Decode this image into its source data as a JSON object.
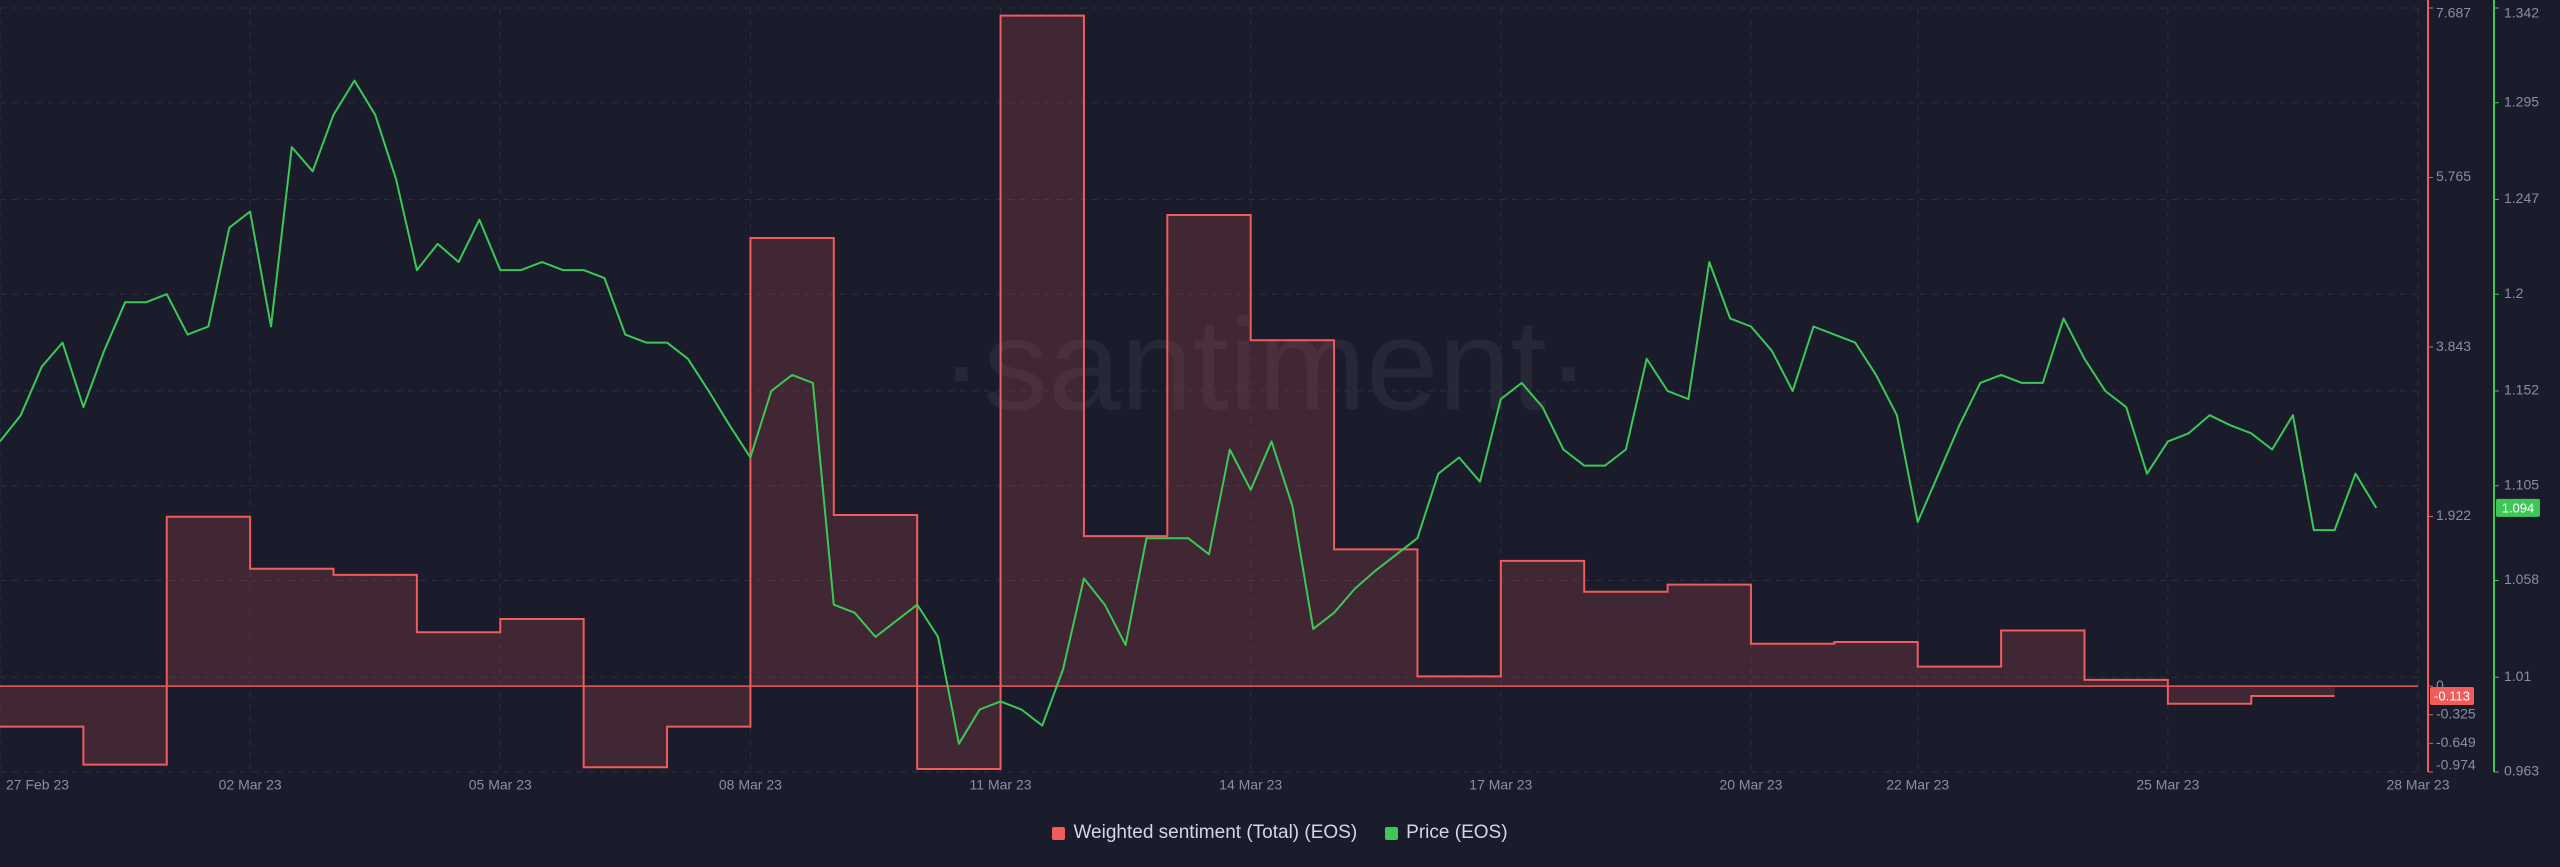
{
  "chart_data": {
    "type": "line",
    "watermark": "·santiment·",
    "xlim": [
      "2023-02-27",
      "2023-03-28"
    ],
    "xticks": [
      {
        "value": "2023-02-27",
        "label": "27 Feb 23"
      },
      {
        "value": "2023-03-02",
        "label": "02 Mar 23"
      },
      {
        "value": "2023-03-05",
        "label": "05 Mar 23"
      },
      {
        "value": "2023-03-08",
        "label": "08 Mar 23"
      },
      {
        "value": "2023-03-11",
        "label": "11 Mar 23"
      },
      {
        "value": "2023-03-14",
        "label": "14 Mar 23"
      },
      {
        "value": "2023-03-17",
        "label": "17 Mar 23"
      },
      {
        "value": "2023-03-20",
        "label": "20 Mar 23"
      },
      {
        "value": "2023-03-22",
        "label": "22 Mar 23"
      },
      {
        "value": "2023-03-25",
        "label": "25 Mar 23"
      },
      {
        "value": "2023-03-28",
        "label": "28 Mar 23"
      }
    ],
    "ylim": [
      -0.974,
      7.687
    ],
    "yticks": [
      7.687,
      5.765,
      3.843,
      1.922,
      0,
      -0.325,
      -0.649,
      -0.974
    ],
    "y2lim": [
      0.963,
      1.342
    ],
    "y2ticks": [
      1.342,
      1.295,
      1.247,
      1.2,
      1.152,
      1.105,
      1.058,
      1.01,
      0.963
    ],
    "grid": true,
    "series": [
      {
        "name": "Weighted sentiment (Total) (EOS)",
        "color": "#f05b5b",
        "axis": "y",
        "x": [
          "2023-02-27",
          "2023-02-28",
          "2023-03-01",
          "2023-03-02",
          "2023-03-03",
          "2023-03-04",
          "2023-03-05",
          "2023-03-06",
          "2023-03-07",
          "2023-03-08",
          "2023-03-09",
          "2023-03-10",
          "2023-03-11",
          "2023-03-12",
          "2023-03-13",
          "2023-03-14",
          "2023-03-15",
          "2023-03-16",
          "2023-03-17",
          "2023-03-18",
          "2023-03-19",
          "2023-03-20",
          "2023-03-21",
          "2023-03-22",
          "2023-03-23",
          "2023-03-24",
          "2023-03-25",
          "2023-03-26"
        ],
        "values": [
          -0.46,
          -0.89,
          1.92,
          1.33,
          1.26,
          0.61,
          0.76,
          -0.92,
          -0.46,
          5.08,
          1.94,
          -0.94,
          7.6,
          1.7,
          5.34,
          3.92,
          1.55,
          0.11,
          1.42,
          1.07,
          1.15,
          0.48,
          0.5,
          0.22,
          0.63,
          0.07,
          -0.2,
          -0.113
        ]
      },
      {
        "name": "Price (EOS)",
        "color": "#3cc857",
        "axis": "y2",
        "x": [
          "2023-02-27T00:00",
          "2023-02-27T06:00",
          "2023-02-27T12:00",
          "2023-02-27T18:00",
          "2023-02-28T00:00",
          "2023-02-28T06:00",
          "2023-02-28T12:00",
          "2023-02-28T18:00",
          "2023-03-01T00:00",
          "2023-03-01T06:00",
          "2023-03-01T12:00",
          "2023-03-01T18:00",
          "2023-03-02T00:00",
          "2023-03-02T06:00",
          "2023-03-02T12:00",
          "2023-03-02T18:00",
          "2023-03-03T00:00",
          "2023-03-03T06:00",
          "2023-03-03T12:00",
          "2023-03-03T18:00",
          "2023-03-04T00:00",
          "2023-03-04T06:00",
          "2023-03-04T12:00",
          "2023-03-04T18:00",
          "2023-03-05T00:00",
          "2023-03-05T06:00",
          "2023-03-05T12:00",
          "2023-03-05T18:00",
          "2023-03-06T00:00",
          "2023-03-06T06:00",
          "2023-03-06T12:00",
          "2023-03-06T18:00",
          "2023-03-07T00:00",
          "2023-03-07T06:00",
          "2023-03-07T12:00",
          "2023-03-07T18:00",
          "2023-03-08T00:00",
          "2023-03-08T06:00",
          "2023-03-08T12:00",
          "2023-03-08T18:00",
          "2023-03-09T00:00",
          "2023-03-09T06:00",
          "2023-03-09T12:00",
          "2023-03-09T18:00",
          "2023-03-10T00:00",
          "2023-03-10T06:00",
          "2023-03-10T12:00",
          "2023-03-10T18:00",
          "2023-03-11T00:00",
          "2023-03-11T06:00",
          "2023-03-11T12:00",
          "2023-03-11T18:00",
          "2023-03-12T00:00",
          "2023-03-12T06:00",
          "2023-03-12T12:00",
          "2023-03-12T18:00",
          "2023-03-13T00:00",
          "2023-03-13T06:00",
          "2023-03-13T12:00",
          "2023-03-13T18:00",
          "2023-03-14T00:00",
          "2023-03-14T06:00",
          "2023-03-14T12:00",
          "2023-03-14T18:00",
          "2023-03-15T00:00",
          "2023-03-15T06:00",
          "2023-03-15T12:00",
          "2023-03-15T18:00",
          "2023-03-16T00:00",
          "2023-03-16T06:00",
          "2023-03-16T12:00",
          "2023-03-16T18:00",
          "2023-03-17T00:00",
          "2023-03-17T06:00",
          "2023-03-17T12:00",
          "2023-03-17T18:00",
          "2023-03-18T00:00",
          "2023-03-18T06:00",
          "2023-03-18T12:00",
          "2023-03-18T18:00",
          "2023-03-19T00:00",
          "2023-03-19T06:00",
          "2023-03-19T12:00",
          "2023-03-19T18:00",
          "2023-03-20T00:00",
          "2023-03-20T06:00",
          "2023-03-20T12:00",
          "2023-03-20T18:00",
          "2023-03-21T00:00",
          "2023-03-21T06:00",
          "2023-03-21T12:00",
          "2023-03-21T18:00",
          "2023-03-22T00:00",
          "2023-03-22T06:00",
          "2023-03-22T12:00",
          "2023-03-22T18:00",
          "2023-03-23T00:00",
          "2023-03-23T06:00",
          "2023-03-23T12:00",
          "2023-03-23T18:00",
          "2023-03-24T00:00",
          "2023-03-24T06:00",
          "2023-03-24T12:00",
          "2023-03-24T18:00",
          "2023-03-25T00:00",
          "2023-03-25T06:00",
          "2023-03-25T12:00",
          "2023-03-25T18:00",
          "2023-03-26T00:00",
          "2023-03-26T06:00",
          "2023-03-26T12:00",
          "2023-03-26T18:00",
          "2023-03-27T00:00",
          "2023-03-27T06:00",
          "2023-03-27T12:00"
        ],
        "values": [
          1.127,
          1.14,
          1.164,
          1.176,
          1.144,
          1.172,
          1.196,
          1.196,
          1.2,
          1.18,
          1.184,
          1.233,
          1.241,
          1.184,
          1.273,
          1.261,
          1.289,
          1.306,
          1.289,
          1.257,
          1.212,
          1.225,
          1.216,
          1.237,
          1.212,
          1.212,
          1.216,
          1.212,
          1.212,
          1.208,
          1.18,
          1.176,
          1.176,
          1.168,
          1.152,
          1.135,
          1.119,
          1.152,
          1.16,
          1.156,
          1.046,
          1.042,
          1.03,
          1.038,
          1.046,
          1.03,
          0.977,
          0.994,
          0.998,
          0.994,
          0.986,
          1.014,
          1.059,
          1.046,
          1.026,
          1.079,
          1.079,
          1.079,
          1.071,
          1.123,
          1.103,
          1.127,
          1.095,
          1.034,
          1.042,
          1.054,
          1.063,
          1.071,
          1.079,
          1.111,
          1.119,
          1.107,
          1.148,
          1.156,
          1.144,
          1.123,
          1.115,
          1.115,
          1.123,
          1.168,
          1.152,
          1.148,
          1.216,
          1.188,
          1.184,
          1.172,
          1.152,
          1.184,
          1.18,
          1.176,
          1.16,
          1.14,
          1.087,
          1.111,
          1.135,
          1.156,
          1.16,
          1.156,
          1.156,
          1.188,
          1.168,
          1.152,
          1.144,
          1.111,
          1.127,
          1.131,
          1.14,
          1.135,
          1.131,
          1.123,
          1.14,
          1.083,
          1.083,
          1.111,
          1.094
        ]
      }
    ]
  }
}
